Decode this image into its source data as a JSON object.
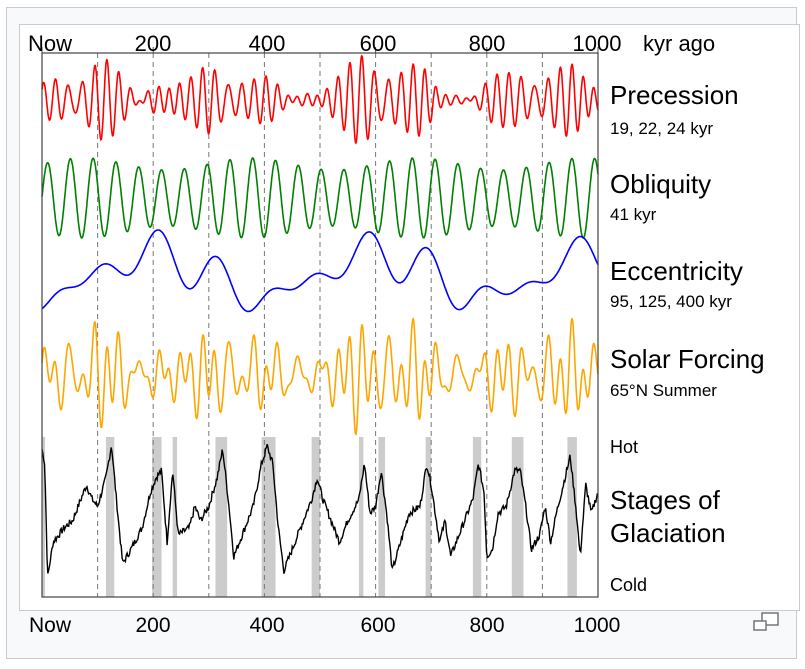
{
  "chart_data": {
    "type": "line",
    "title": "",
    "x_unit_label": "kyr ago",
    "xlim": [
      0,
      1000
    ],
    "top_ticks": [
      "Now",
      "200",
      "400",
      "600",
      "800",
      "1000"
    ],
    "tick_values": [
      0,
      200,
      400,
      600,
      800,
      1000
    ],
    "gridlines_kyr": [
      100,
      200,
      300,
      400,
      500,
      600,
      700,
      800,
      900
    ],
    "series": [
      {
        "name": "Precession",
        "subtitle": "19, 22, 24 kyr",
        "color": "#ff0000",
        "periods_kyr": [
          19,
          22,
          24
        ],
        "modulated_by": "Eccentricity"
      },
      {
        "name": "Obliquity",
        "subtitle": "41 kyr",
        "color": "#008000",
        "periods_kyr": [
          41
        ]
      },
      {
        "name": "Eccentricity",
        "subtitle": "95, 125, 400 kyr",
        "color": "#0000ff",
        "periods_kyr": [
          95,
          125,
          400
        ],
        "peaks_kyr": [
          200,
          600,
          1000
        ]
      },
      {
        "name": "Solar Forcing",
        "subtitle": "65°N Summer",
        "color": "#ffa500",
        "combines": [
          "Precession",
          "Obliquity"
        ]
      },
      {
        "name": "Stages of Glaciation",
        "label_line1": "Stages of",
        "label_line2": "Glaciation",
        "color": "#000000",
        "y_high_label": "Hot",
        "y_low_label": "Cold",
        "points_kyr_relative": [
          [
            0,
            0.95
          ],
          [
            5,
            0.85
          ],
          [
            10,
            0.05
          ],
          [
            20,
            0.3
          ],
          [
            40,
            0.4
          ],
          [
            55,
            0.45
          ],
          [
            70,
            0.6
          ],
          [
            80,
            0.7
          ],
          [
            90,
            0.6
          ],
          [
            100,
            0.55
          ],
          [
            115,
            0.75
          ],
          [
            125,
            0.98
          ],
          [
            135,
            0.55
          ],
          [
            145,
            0.15
          ],
          [
            160,
            0.25
          ],
          [
            180,
            0.4
          ],
          [
            195,
            0.65
          ],
          [
            205,
            0.75
          ],
          [
            215,
            0.8
          ],
          [
            225,
            0.3
          ],
          [
            235,
            0.8
          ],
          [
            245,
            0.35
          ],
          [
            265,
            0.4
          ],
          [
            275,
            0.55
          ],
          [
            285,
            0.45
          ],
          [
            300,
            0.55
          ],
          [
            315,
            0.75
          ],
          [
            325,
            0.95
          ],
          [
            335,
            0.6
          ],
          [
            345,
            0.2
          ],
          [
            360,
            0.35
          ],
          [
            380,
            0.55
          ],
          [
            395,
            0.85
          ],
          [
            405,
            0.97
          ],
          [
            415,
            0.85
          ],
          [
            425,
            0.4
          ],
          [
            435,
            0.1
          ],
          [
            450,
            0.25
          ],
          [
            470,
            0.45
          ],
          [
            485,
            0.6
          ],
          [
            495,
            0.75
          ],
          [
            505,
            0.6
          ],
          [
            520,
            0.45
          ],
          [
            535,
            0.3
          ],
          [
            550,
            0.45
          ],
          [
            570,
            0.6
          ],
          [
            580,
            0.85
          ],
          [
            590,
            0.5
          ],
          [
            600,
            0.55
          ],
          [
            610,
            0.8
          ],
          [
            620,
            0.5
          ],
          [
            630,
            0.1
          ],
          [
            645,
            0.3
          ],
          [
            660,
            0.5
          ],
          [
            680,
            0.55
          ],
          [
            692,
            0.85
          ],
          [
            700,
            0.7
          ],
          [
            715,
            0.3
          ],
          [
            725,
            0.45
          ],
          [
            735,
            0.2
          ],
          [
            750,
            0.35
          ],
          [
            775,
            0.6
          ],
          [
            785,
            0.85
          ],
          [
            795,
            0.65
          ],
          [
            800,
            0.2
          ],
          [
            810,
            0.25
          ],
          [
            820,
            0.5
          ],
          [
            835,
            0.55
          ],
          [
            850,
            0.8
          ],
          [
            860,
            0.8
          ],
          [
            870,
            0.55
          ],
          [
            880,
            0.25
          ],
          [
            895,
            0.35
          ],
          [
            905,
            0.55
          ],
          [
            915,
            0.3
          ],
          [
            925,
            0.5
          ],
          [
            950,
            0.9
          ],
          [
            960,
            0.55
          ],
          [
            968,
            0.2
          ],
          [
            978,
            0.7
          ],
          [
            988,
            0.5
          ],
          [
            1000,
            0.65
          ]
        ],
        "interglacial_bands_kyr": [
          [
            0,
            3
          ],
          [
            115,
            130
          ],
          [
            198,
            215
          ],
          [
            235,
            243
          ],
          [
            312,
            333
          ],
          [
            395,
            420
          ],
          [
            485,
            500
          ],
          [
            570,
            578
          ],
          [
            605,
            617
          ],
          [
            690,
            700
          ],
          [
            775,
            790
          ],
          [
            845,
            866
          ],
          [
            945,
            962
          ]
        ]
      }
    ]
  },
  "caption": {
    "ticks": [
      "Now",
      "200",
      "400",
      "600",
      "800",
      "1000"
    ],
    "expand_icon": "expand-icon"
  }
}
